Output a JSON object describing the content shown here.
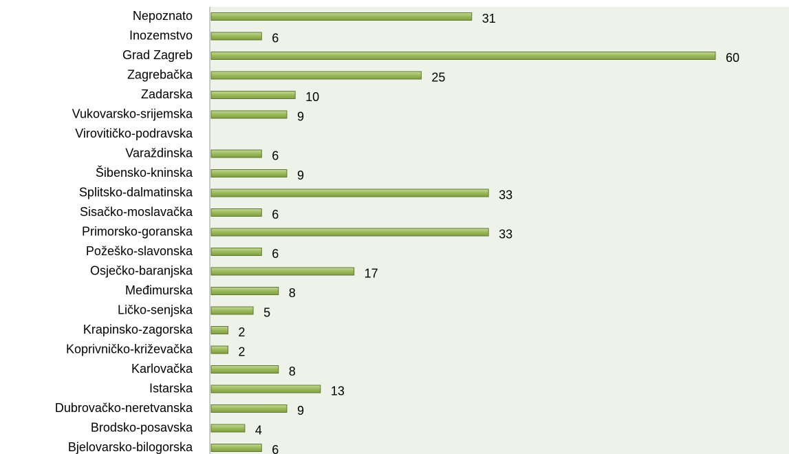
{
  "chart_data": {
    "type": "bar",
    "orientation": "horizontal",
    "categories": [
      "Nepoznato",
      "Inozemstvo",
      "Grad Zagreb",
      "Zagrebačka",
      "Zadarska",
      "Vukovarsko-srijemska",
      "Virovitičko-podravska",
      "Varaždinska",
      "Šibensko-kninska",
      "Splitsko-dalmatinska",
      "Sisačko-moslavačka",
      "Primorsko-goranska",
      "Požeško-slavonska",
      "Osječko-baranjska",
      "Međimurska",
      "Ličko-senjska",
      "Krapinsko-zagorska",
      "Koprivničko-križevačka",
      "Karlovačka",
      "Istarska",
      "Dubrovačko-neretvanska",
      "Brodsko-posavska",
      "Bjelovarsko-bilogorska"
    ],
    "values": [
      31,
      6,
      60,
      25,
      10,
      9,
      null,
      6,
      9,
      33,
      6,
      33,
      6,
      17,
      8,
      5,
      2,
      2,
      8,
      13,
      9,
      4,
      6
    ],
    "color": "#9bbb59",
    "xlim": [
      0,
      60
    ]
  }
}
